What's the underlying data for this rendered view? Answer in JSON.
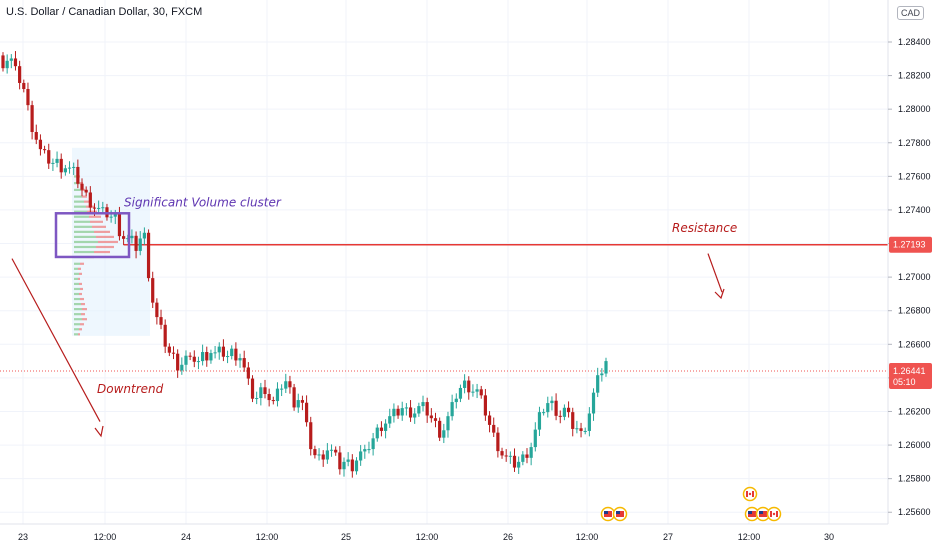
{
  "header": {
    "title": "U.S. Dollar / Canadian Dollar, 30, FXCM",
    "currency": "CAD"
  },
  "colors": {
    "up": "#26a69a",
    "down": "#ef5350",
    "candle_up": "#26a69a",
    "candle_down": "#b71c1c",
    "resistance": "#e53935",
    "annotation_text": "#b71c1c",
    "cluster_box": "#7e57c2",
    "cluster_text": "#5e35b1",
    "profile_up": "#66bb6a",
    "profile_down": "#ef5350",
    "price_tag": "#ef5350"
  },
  "chart_data": {
    "type": "candlestick",
    "y_ticks": [
      "1.25600",
      "1.25800",
      "1.26000",
      "1.26200",
      "1.26400",
      "1.26600",
      "1.26800",
      "1.27000",
      "1.27200",
      "1.27400",
      "1.27600",
      "1.27800",
      "1.28000",
      "1.28200",
      "1.28400"
    ],
    "ylim": [
      1.2553,
      1.2865
    ],
    "x_ticks": [
      "23",
      "12:00",
      "24",
      "12:00",
      "25",
      "12:00",
      "26",
      "12:00",
      "27",
      "12:00",
      "30"
    ],
    "resistance_level": 1.27193,
    "resistance_label": "1.27193",
    "last_price": 1.26441,
    "last_price_label": "1.26441",
    "countdown": "05:10",
    "annotations": {
      "cluster": "Significant Volume cluster",
      "resistance": "Resistance",
      "trend": "Downtrend"
    },
    "close_path": [
      1.2828,
      1.283,
      1.2829,
      1.2822,
      1.2818,
      1.2812,
      1.28,
      1.279,
      1.2783,
      1.2775,
      1.2772,
      1.277,
      1.2768,
      1.2768,
      1.2766,
      1.2766,
      1.2764,
      1.2762,
      1.2758,
      1.2752,
      1.2748,
      1.2745,
      1.2742,
      1.274,
      1.2738,
      1.2738,
      1.2736,
      1.2735,
      1.2728,
      1.2724,
      1.2722,
      1.2721,
      1.2718,
      1.2723,
      1.2724,
      1.2703,
      1.2686,
      1.2675,
      1.2668,
      1.2661,
      1.2655,
      1.2652,
      1.2648,
      1.2649,
      1.2652,
      1.2649,
      1.2652,
      1.265,
      1.2653,
      1.2654,
      1.2656,
      1.2654,
      1.2655,
      1.2655,
      1.2653,
      1.2655,
      1.2654,
      1.2653,
      1.2645,
      1.2636,
      1.263,
      1.2628,
      1.2632,
      1.2634,
      1.2628,
      1.2625,
      1.263,
      1.2636,
      1.2638,
      1.2632,
      1.2626,
      1.2628,
      1.2624,
      1.261,
      1.26,
      1.2594,
      1.2592,
      1.2595,
      1.2598,
      1.2596,
      1.2592,
      1.2588,
      1.259,
      1.2589,
      1.2588,
      1.2592,
      1.2595,
      1.2594,
      1.26,
      1.2604,
      1.2608,
      1.2612,
      1.2614,
      1.2616,
      1.2618,
      1.262,
      1.2622,
      1.262,
      1.262,
      1.262,
      1.2622,
      1.2622,
      1.262,
      1.2616,
      1.2612,
      1.2608,
      1.261,
      1.2616,
      1.2622,
      1.263,
      1.2634,
      1.2636,
      1.2635,
      1.2633,
      1.2632,
      1.2626,
      1.262,
      1.2612,
      1.2605,
      1.26,
      1.2595,
      1.2592,
      1.259,
      1.2589,
      1.259,
      1.2592,
      1.2596,
      1.26,
      1.2608,
      1.2616,
      1.2622,
      1.2625,
      1.2624,
      1.2621,
      1.2618,
      1.2621,
      1.2616,
      1.2612,
      1.261,
      1.2606,
      1.2612,
      1.262,
      1.263,
      1.2638,
      1.2645,
      1.265
    ]
  }
}
